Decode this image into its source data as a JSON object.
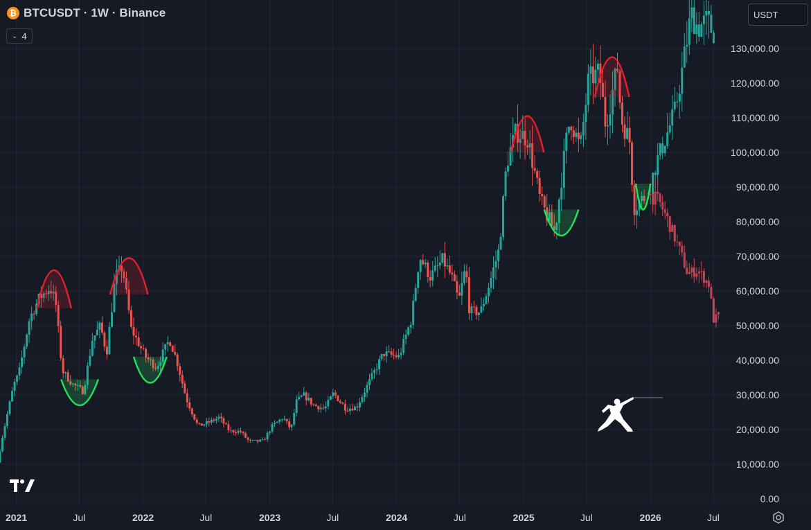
{
  "header": {
    "symbol": "BTCUSDT",
    "interval": "1W",
    "exchange": "Binance",
    "title": "BTCUSDT · 1W · Binance",
    "indicator_count": "4"
  },
  "currency_selector": {
    "value": "USDT"
  },
  "colors": {
    "background": "#161a25",
    "grid": "#232733",
    "up": "#26a69a",
    "down": "#ef5350",
    "projection": "#c9424f",
    "top_arc": "#e0212d",
    "bottom_arc": "#22e05a",
    "text": "#d1d4dc",
    "bitcoin": "#f7931a"
  },
  "icons": {
    "symbol": "bitcoin-icon",
    "indicators": "chevron-down-icon",
    "logo": "tradingview-logo",
    "settings": "gear-icon",
    "drawing": "fencer-icon"
  },
  "chart_data": {
    "type": "candlestick",
    "title": "BTCUSDT · 1W · Binance",
    "price_scale": {
      "unit": "USDT",
      "range": [
        -2000,
        144000
      ],
      "ticks": [
        0,
        10000,
        20000,
        30000,
        40000,
        50000,
        60000,
        70000,
        80000,
        90000,
        100000,
        110000,
        120000,
        130000
      ],
      "tick_labels": [
        "0.00",
        "10,000.00",
        "20,000.00",
        "30,000.00",
        "40,000.00",
        "50,000.00",
        "60,000.00",
        "70,000.00",
        "80,000.00",
        "90,000.00",
        "100,000.00",
        "110,000.00",
        "120,000.00",
        "130,000.00"
      ]
    },
    "time_scale": {
      "range": [
        "2020-11-15",
        "2026-09-15"
      ],
      "ticks": [
        "2021-01-01",
        "2021-07-01",
        "2022-01-01",
        "2022-07-01",
        "2023-01-01",
        "2023-07-01",
        "2024-01-01",
        "2024-07-01",
        "2025-01-01",
        "2025-07-01",
        "2026-01-01",
        "2026-07-01"
      ],
      "tick_labels": [
        "2021",
        "Jul",
        "2022",
        "Jul",
        "2023",
        "Jul",
        "2024",
        "Jul",
        "2025",
        "Jul",
        "2026",
        "Jul"
      ]
    },
    "price_path": [
      [
        "2020-11-15",
        10500
      ],
      [
        "2020-12-01",
        19000
      ],
      [
        "2021-01-01",
        33000
      ],
      [
        "2021-01-15",
        36000
      ],
      [
        "2021-02-15",
        52000
      ],
      [
        "2021-03-15",
        58000
      ],
      [
        "2021-04-15",
        61000
      ],
      [
        "2021-05-01",
        57000
      ],
      [
        "2021-05-20",
        37000
      ],
      [
        "2021-06-20",
        33000
      ],
      [
        "2021-07-20",
        31000
      ],
      [
        "2021-08-15",
        46000
      ],
      [
        "2021-09-07",
        50000
      ],
      [
        "2021-09-25",
        42000
      ],
      [
        "2021-10-20",
        64000
      ],
      [
        "2021-11-10",
        67000
      ],
      [
        "2021-12-05",
        49000
      ],
      [
        "2022-01-15",
        41000
      ],
      [
        "2022-02-15",
        38000
      ],
      [
        "2022-03-25",
        46000
      ],
      [
        "2022-04-15",
        40000
      ],
      [
        "2022-05-12",
        29000
      ],
      [
        "2022-06-15",
        21000
      ],
      [
        "2022-07-15",
        22000
      ],
      [
        "2022-08-15",
        23500
      ],
      [
        "2022-09-15",
        19500
      ],
      [
        "2022-10-15",
        19500
      ],
      [
        "2022-11-10",
        16500
      ],
      [
        "2022-12-20",
        16700
      ],
      [
        "2023-01-15",
        21000
      ],
      [
        "2023-02-15",
        23500
      ],
      [
        "2023-03-10",
        20000
      ],
      [
        "2023-03-25",
        28000
      ],
      [
        "2023-04-15",
        30000
      ],
      [
        "2023-05-15",
        27000
      ],
      [
        "2023-06-15",
        26000
      ],
      [
        "2023-07-10",
        30500
      ],
      [
        "2023-08-15",
        26000
      ],
      [
        "2023-09-15",
        26500
      ],
      [
        "2023-10-25",
        34500
      ],
      [
        "2023-12-01",
        42000
      ],
      [
        "2024-01-15",
        41000
      ],
      [
        "2024-02-20",
        52000
      ],
      [
        "2024-03-14",
        70000
      ],
      [
        "2024-04-15",
        64000
      ],
      [
        "2024-05-20",
        69000
      ],
      [
        "2024-06-15",
        64000
      ],
      [
        "2024-07-05",
        57000
      ],
      [
        "2024-07-25",
        67000
      ],
      [
        "2024-08-05",
        54000
      ],
      [
        "2024-09-06",
        54000
      ],
      [
        "2024-10-01",
        62000
      ],
      [
        "2024-10-29",
        72000
      ],
      [
        "2024-11-20",
        97000
      ],
      [
        "2024-12-17",
        106000
      ],
      [
        "2025-01-20",
        104000
      ],
      [
        "2025-02-25",
        86000
      ],
      [
        "2025-03-15",
        82000
      ],
      [
        "2025-04-08",
        77000
      ],
      [
        "2025-05-10",
        103000
      ],
      [
        "2025-05-22",
        110000
      ],
      [
        "2025-06-20",
        101000
      ],
      [
        "2025-07-14",
        121000
      ],
      [
        "2025-08-14",
        123000
      ],
      [
        "2025-09-01",
        108000
      ],
      [
        "2025-10-06",
        125000
      ],
      [
        "2025-10-15",
        110000
      ],
      [
        "2025-11-10",
        103000
      ],
      [
        "2025-11-21",
        84000
      ],
      [
        "2025-12-20",
        87000
      ]
    ],
    "projection_up": [
      [
        "2026-01-01",
        88000
      ],
      [
        "2026-01-25",
        97000
      ],
      [
        "2026-02-20",
        104000
      ],
      [
        "2026-03-20",
        112000
      ],
      [
        "2026-04-10",
        124000
      ],
      [
        "2026-05-05",
        140000
      ],
      [
        "2026-05-25",
        136000
      ],
      [
        "2026-06-20",
        138000
      ],
      [
        "2026-07-05",
        135000
      ]
    ],
    "projection_down": [
      [
        "2026-01-01",
        88000
      ],
      [
        "2026-02-01",
        86000
      ],
      [
        "2026-03-01",
        80000
      ],
      [
        "2026-04-05",
        71000
      ],
      [
        "2026-04-25",
        65000
      ],
      [
        "2026-05-25",
        66000
      ],
      [
        "2026-06-25",
        62000
      ],
      [
        "2026-07-10",
        51000
      ],
      [
        "2026-07-20",
        53000
      ]
    ],
    "annotations": [
      {
        "kind": "top-arc",
        "from": "2021-03-01",
        "to": "2021-06-08",
        "base": 55000,
        "peak": 66000
      },
      {
        "kind": "top-arc",
        "from": "2021-09-28",
        "to": "2022-01-15",
        "base": 59000,
        "peak": 69500
      },
      {
        "kind": "top-arc",
        "from": "2024-11-25",
        "to": "2025-02-28",
        "base": 100000,
        "peak": 110500
      },
      {
        "kind": "top-arc",
        "from": "2025-07-25",
        "to": "2025-11-01",
        "base": 116000,
        "peak": 127500
      },
      {
        "kind": "bottom-arc",
        "from": "2021-05-10",
        "to": "2021-08-25",
        "base": 34500,
        "trough": 27000
      },
      {
        "kind": "bottom-arc",
        "from": "2021-12-05",
        "to": "2022-03-10",
        "base": 41000,
        "trough": 33500
      },
      {
        "kind": "bottom-arc",
        "from": "2025-03-01",
        "to": "2025-06-08",
        "base": 83500,
        "trough": 76000
      },
      {
        "kind": "bottom-arc",
        "from": "2025-11-20",
        "to": "2026-01-01",
        "base": 91000,
        "trough": 83500
      }
    ]
  }
}
